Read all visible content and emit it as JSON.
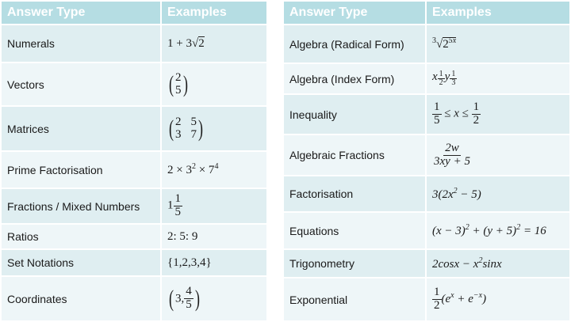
{
  "left": {
    "headers": [
      "Answer Type",
      "Examples"
    ],
    "rows": [
      {
        "type": "Numerals",
        "example": {
          "a": "1 + 3",
          "rad": "√",
          "r": "2"
        }
      },
      {
        "type": "Vectors",
        "example": {
          "top": "2",
          "bottom": "5"
        }
      },
      {
        "type": "Matrices",
        "example": {
          "a": "2",
          "b": "5",
          "c": "3",
          "d": "7"
        }
      },
      {
        "type": "Prime Factorisation",
        "example": {
          "a": "2 × 3",
          "e1": "2",
          "b": " × 7",
          "e2": "4"
        }
      },
      {
        "type": "Fractions / Mixed Numbers",
        "example": {
          "whole": "1",
          "num": "1",
          "den": "5"
        }
      },
      {
        "type": "Ratios",
        "example": {
          "text": "2: 5: 9"
        }
      },
      {
        "type": "Set Notations",
        "example": {
          "text": "{1,2,3,4}"
        }
      },
      {
        "type": "Coordinates",
        "example": {
          "a": "3,",
          "num": "4",
          "den": "5"
        }
      }
    ]
  },
  "right": {
    "headers": [
      "Answer Type",
      "Examples"
    ],
    "rows": [
      {
        "type": "Algebra (Radical Form)",
        "example": {
          "index": "3",
          "rad": "√",
          "base": "2",
          "exp": "5x"
        }
      },
      {
        "type": "Algebra (Index Form)",
        "example": {
          "x": "x",
          "xn": "1",
          "xd": "2",
          "y": "y",
          "yn": "1",
          "yd": "3"
        }
      },
      {
        "type": "Inequality",
        "example": {
          "n1": "1",
          "d1": "5",
          "mid": " ≤ x ≤ ",
          "n2": "1",
          "d2": "2"
        }
      },
      {
        "type": "Algebraic Fractions",
        "example": {
          "num": "2w",
          "den": "3xy + 5"
        }
      },
      {
        "type": "Factorisation",
        "example": {
          "a": "3(2x",
          "e": "2",
          "b": " − 5)"
        }
      },
      {
        "type": "Equations",
        "example": {
          "a": "(x − 3)",
          "e1": "2",
          "b": " + (y + 5)",
          "e2": "2",
          "c": " = 16"
        }
      },
      {
        "type": "Trigonometry",
        "example": {
          "a": "2cosx − x",
          "e": "2",
          "b": "sinx"
        }
      },
      {
        "type": "Exponential",
        "example": {
          "num": "1",
          "den": "2",
          "a": "(e",
          "e1": "x",
          "b": " + e",
          "e2": "−x",
          "c": ")"
        }
      }
    ]
  }
}
